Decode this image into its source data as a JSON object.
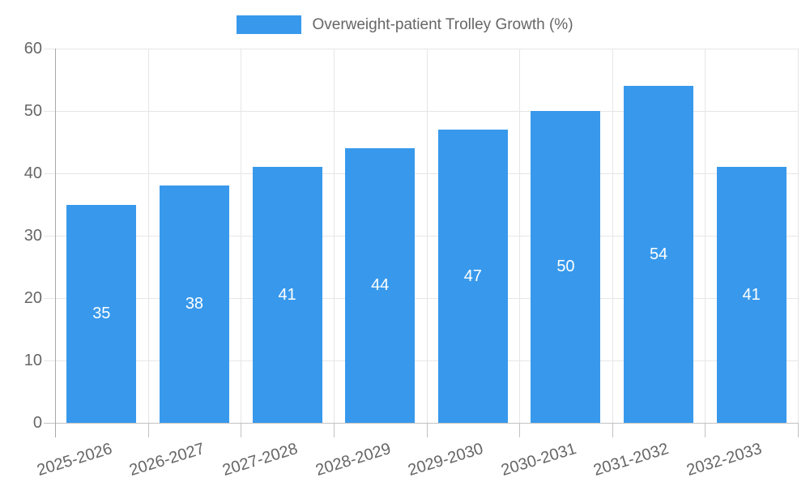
{
  "chart_data": {
    "type": "bar",
    "title": "Overweight-patient Trolley Growth (%)",
    "categories": [
      "2025-2026",
      "2026-2027",
      "2027-2028",
      "2028-2029",
      "2029-2030",
      "2030-2031",
      "2031-2032",
      "2032-2033"
    ],
    "values": [
      35,
      38,
      41,
      44,
      47,
      50,
      54,
      41
    ],
    "xlabel": "",
    "ylabel": "",
    "ylim": [
      0,
      60
    ],
    "yticks": [
      0,
      10,
      20,
      30,
      40,
      50,
      60
    ],
    "grid": true,
    "legend_position": "top",
    "bar_labels_inside": true,
    "colors": {
      "bar": "#3899EC",
      "bar_label": "#ffffff",
      "axis_text": "#666666",
      "grid": "#e6e6e6",
      "y_axis_line": "#a8a8a8",
      "x_axis_line": "#c2c2c2",
      "background": "#ffffff"
    }
  }
}
